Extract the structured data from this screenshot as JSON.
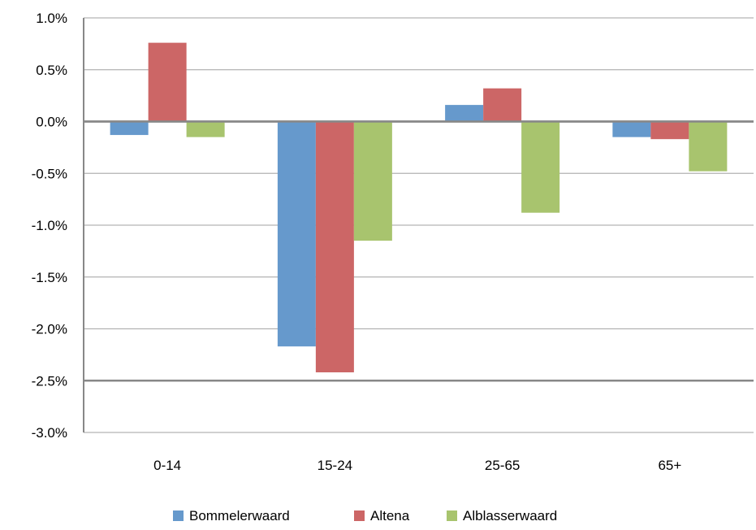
{
  "chart_data": {
    "type": "bar",
    "title": "",
    "xlabel": "",
    "ylabel": "",
    "categories": [
      "0-14",
      "15-24",
      "25-65",
      "65+"
    ],
    "series": [
      {
        "name": "Bommelerwaard",
        "color": "#6699CC",
        "values": [
          -0.13,
          -2.17,
          0.16,
          -0.15
        ]
      },
      {
        "name": "Altena",
        "color": "#CC6666",
        "values": [
          0.76,
          -2.42,
          0.32,
          -0.17
        ]
      },
      {
        "name": "Alblasserwaard",
        "color": "#A8C46E",
        "values": [
          -0.15,
          -1.15,
          -0.88,
          -0.48
        ]
      }
    ],
    "ylim": [
      -3.0,
      1.0
    ],
    "yticks": [
      1.0,
      0.5,
      0.0,
      -0.5,
      -1.0,
      -1.5,
      -2.0,
      -2.5,
      -3.0
    ],
    "ytick_labels": [
      "1.0%",
      "0.5%",
      "0.0%",
      "-0.5%",
      "-1.0%",
      "-1.5%",
      "-2.0%",
      "-2.5%",
      "-3.0%"
    ],
    "grid": true,
    "legend_position": "bottom"
  }
}
